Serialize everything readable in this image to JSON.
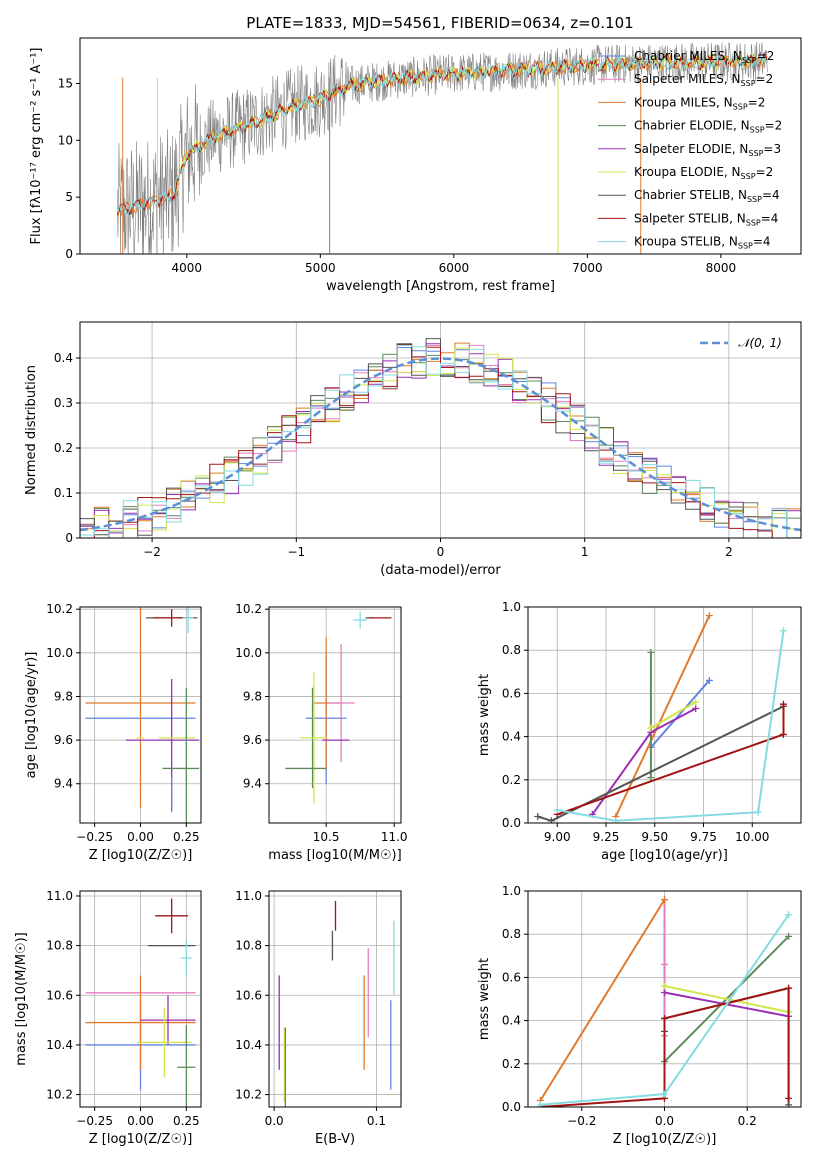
{
  "figure": {
    "title": "PLATE=1833, MJD=54561, FIBERID=0634, z=0.101"
  },
  "colors": {
    "chabrier_miles": "#5f84e0",
    "salpeter_miles": "#e87dc4",
    "kroupa_miles": "#e07b2e",
    "chabrier_elodie": "#5b8c5a",
    "salpeter_elodie": "#9a2fb5",
    "kroupa_elodie": "#d2e64b",
    "chabrier_stelib": "#555555",
    "salpeter_stelib": "#a31515",
    "kroupa_stelib": "#84dbe0",
    "data": "#808080",
    "gauss": "#5b8fd6"
  },
  "chart_data": [
    {
      "type": "line",
      "xlabel": "wavelength [Angstrom, rest frame]",
      "ylabel": "Flux [fλ10⁻¹⁷ erg cm⁻² s⁻¹ A⁻¹]",
      "xlim": [
        3200,
        8600
      ],
      "ylim": [
        0,
        19
      ],
      "xticks": [
        4000,
        5000,
        6000,
        7000,
        8000
      ],
      "yticks": [
        0,
        5,
        10,
        15
      ],
      "grid": false,
      "legend_position": "top-right",
      "continuum_points": [
        [
          3500,
          3.8
        ],
        [
          3700,
          4.5
        ],
        [
          3900,
          5.2
        ],
        [
          4000,
          8.8
        ],
        [
          4200,
          10.3
        ],
        [
          4500,
          11.5
        ],
        [
          4800,
          13.0
        ],
        [
          5000,
          13.7
        ],
        [
          5200,
          14.8
        ],
        [
          5500,
          15.3
        ],
        [
          5900,
          15.8
        ],
        [
          6200,
          16.0
        ],
        [
          6600,
          16.3
        ],
        [
          7000,
          16.6
        ],
        [
          7500,
          16.8
        ],
        [
          8000,
          16.9
        ],
        [
          8300,
          17.0
        ]
      ],
      "series": [
        {
          "name": "Chabrier MILES, N_SSP=2",
          "color_key": "chabrier_miles"
        },
        {
          "name": "Salpeter MILES, N_SSP=2",
          "color_key": "salpeter_miles"
        },
        {
          "name": "Kroupa MILES, N_SSP=2",
          "color_key": "kroupa_miles"
        },
        {
          "name": "Chabrier ELODIE, N_SSP=2",
          "color_key": "chabrier_elodie"
        },
        {
          "name": "Salpeter ELODIE, N_SSP=3",
          "color_key": "salpeter_elodie"
        },
        {
          "name": "Kroupa ELODIE, N_SSP=2",
          "color_key": "kroupa_elodie"
        },
        {
          "name": "Chabrier STELIB, N_SSP=4",
          "color_key": "chabrier_stelib"
        },
        {
          "name": "Salpeter STELIB, N_SSP=4",
          "color_key": "salpeter_stelib"
        },
        {
          "name": "Kroupa STELIB, N_SSP=4",
          "color_key": "kroupa_stelib"
        }
      ]
    },
    {
      "type": "line",
      "xlabel": "(data-model)/error",
      "ylabel": "Normed distribution",
      "xlim": [
        -2.5,
        2.5
      ],
      "ylim": [
        0,
        0.48
      ],
      "xticks": [
        -2,
        -1,
        0,
        1,
        2
      ],
      "yticks": [
        0.0,
        0.1,
        0.2,
        0.3,
        0.4
      ],
      "grid": true,
      "legend_position": "top-right",
      "gaussian_label": "𝒩(0, 1)",
      "bin_width": 0.1
    },
    {
      "type": "scatter",
      "xlabel": "Z [log10(Z/Z☉)]",
      "ylabel": "age [log10(age/yr)]",
      "xlim": [
        -0.33,
        0.33
      ],
      "ylim": [
        9.22,
        10.21
      ],
      "xticks": [
        "-0.25",
        "0.00",
        "0.25"
      ],
      "yticks": [
        "9.4",
        "9.6",
        "9.8",
        "10.0",
        "10.2"
      ],
      "grid": true,
      "points": [
        {
          "key": "chabrier_miles",
          "x": 0.0,
          "xerr": 0.3,
          "y": 9.7,
          "yerr": 0.0
        },
        {
          "key": "kroupa_miles",
          "x": 0.0,
          "xerr": 0.3,
          "y": 9.77,
          "yerr": 0.48
        },
        {
          "key": "salpeter_elodie",
          "x": 0.17,
          "xerr": 0.0,
          "y": 9.58,
          "yerr": 0.3
        },
        {
          "key": "salpeter_elodie",
          "x": 0.12,
          "xerr": 0.2,
          "y": 9.6,
          "yerr": 0.0
        },
        {
          "key": "kroupa_elodie",
          "x": 0.0,
          "xerr": 0.0,
          "y": 9.61,
          "yerr": 0.0
        },
        {
          "key": "kroupa_elodie",
          "x": 0.2,
          "xerr": 0.1,
          "y": 9.61,
          "yerr": 0.0
        },
        {
          "key": "chabrier_elodie",
          "x": 0.25,
          "xerr": 0.0,
          "y": 9.48,
          "yerr": 0.36
        },
        {
          "key": "chabrier_stelib",
          "x": 0.17,
          "xerr": 0.14,
          "y": 10.16,
          "yerr": 0.0
        },
        {
          "key": "salpeter_stelib",
          "x": 0.17,
          "xerr": 0.1,
          "y": 10.16,
          "yerr": 0.04
        },
        {
          "key": "kroupa_stelib",
          "x": 0.26,
          "xerr": 0.03,
          "y": 10.16,
          "yerr": 0.07
        },
        {
          "key": "chabrier_elodie",
          "x": 0.22,
          "xerr": 0.1,
          "y": 9.47,
          "yerr": 0.0
        },
        {
          "key": "chabrier_miles",
          "x": 0.17,
          "xerr": 0.0,
          "y": 9.35,
          "yerr": 0.08
        }
      ]
    },
    {
      "type": "scatter",
      "xlabel": "mass [log10(M/M☉)]",
      "ylabel": "",
      "xlim": [
        10.08,
        11.05
      ],
      "ylim": [
        9.22,
        10.21
      ],
      "xticks": [
        "10.5",
        "11.0"
      ],
      "yticks": [
        "9.4",
        "9.6",
        "9.8",
        "10.0",
        "10.2"
      ],
      "grid": true,
      "points": [
        {
          "key": "chabrier_miles",
          "x": 10.5,
          "xerr": 0.15,
          "y": 9.7,
          "yerr": 0.3
        },
        {
          "key": "kroupa_miles",
          "x": 10.5,
          "xerr": 0.1,
          "y": 9.77,
          "yerr": 0.3
        },
        {
          "key": "salpeter_miles",
          "x": 10.61,
          "xerr": 0.1,
          "y": 9.77,
          "yerr": 0.27
        },
        {
          "key": "chabrier_elodie",
          "x": 10.4,
          "xerr": 0.0,
          "y": 9.61,
          "yerr": 0.23
        },
        {
          "key": "salpeter_elodie",
          "x": 10.57,
          "xerr": 0.1,
          "y": 9.6,
          "yerr": 0.0
        },
        {
          "key": "kroupa_elodie",
          "x": 10.41,
          "xerr": 0.1,
          "y": 9.61,
          "yerr": 0.3
        },
        {
          "key": "chabrier_elodie",
          "x": 10.35,
          "xerr": 0.15,
          "y": 9.47,
          "yerr": 0.0
        },
        {
          "key": "chabrier_stelib",
          "x": 10.82,
          "xerr": 0.03,
          "y": 10.16,
          "yerr": 0.0
        },
        {
          "key": "salpeter_stelib",
          "x": 10.9,
          "xerr": 0.08,
          "y": 10.16,
          "yerr": 0.0
        },
        {
          "key": "kroupa_stelib",
          "x": 10.75,
          "xerr": 0.05,
          "y": 10.15,
          "yerr": 0.04
        }
      ]
    },
    {
      "type": "line",
      "xlabel": "age [log10(age/yr)]",
      "ylabel": "mass weight",
      "xlim": [
        8.85,
        10.25
      ],
      "ylim": [
        0,
        1.0
      ],
      "xticks": [
        "9.00",
        "9.25",
        "9.50",
        "9.75",
        "10.00"
      ],
      "yticks": [
        "0.0",
        "0.2",
        "0.4",
        "0.6",
        "0.8",
        "1.0"
      ],
      "grid": true,
      "series": [
        {
          "key": "chabrier_miles",
          "points": [
            [
              9.48,
              0.35
            ],
            [
              9.78,
              0.66
            ]
          ]
        },
        {
          "key": "kroupa_miles",
          "points": [
            [
              9.3,
              0.03
            ],
            [
              9.78,
              0.96
            ]
          ]
        },
        {
          "key": "chabrier_elodie",
          "points": [
            [
              9.48,
              0.21
            ],
            [
              9.48,
              0.79
            ]
          ]
        },
        {
          "key": "salpeter_elodie",
          "points": [
            [
              9.18,
              0.04
            ],
            [
              9.48,
              0.42
            ],
            [
              9.71,
              0.53
            ]
          ]
        },
        {
          "key": "kroupa_elodie",
          "points": [
            [
              9.48,
              0.44
            ],
            [
              9.71,
              0.56
            ]
          ]
        },
        {
          "key": "chabrier_stelib",
          "points": [
            [
              8.9,
              0.03
            ],
            [
              8.97,
              0.01
            ],
            [
              10.16,
              0.54
            ]
          ]
        },
        {
          "key": "salpeter_stelib",
          "points": [
            [
              9.0,
              0.04
            ],
            [
              10.16,
              0.41
            ],
            [
              10.16,
              0.55
            ]
          ]
        },
        {
          "key": "kroupa_stelib",
          "points": [
            [
              9.0,
              0.06
            ],
            [
              9.3,
              0.01
            ],
            [
              10.03,
              0.05
            ],
            [
              10.16,
              0.89
            ]
          ]
        }
      ]
    },
    {
      "type": "scatter",
      "xlabel": "Z [log10(Z/Z☉)]",
      "ylabel": "mass [log10(M/M☉)]",
      "xlim": [
        -0.33,
        0.33
      ],
      "ylim": [
        10.15,
        11.02
      ],
      "xticks": [
        "-0.25",
        "0.00",
        "0.25"
      ],
      "yticks": [
        "10.2",
        "10.4",
        "10.6",
        "10.8",
        "11.0"
      ],
      "grid": true,
      "points": [
        {
          "key": "chabrier_miles",
          "x": 0.0,
          "xerr": 0.3,
          "y": 10.4,
          "yerr": 0.18
        },
        {
          "key": "salpeter_miles",
          "x": 0.0,
          "xerr": 0.3,
          "y": 10.61,
          "yerr": 0.0
        },
        {
          "key": "kroupa_miles",
          "x": 0.0,
          "xerr": 0.3,
          "y": 10.49,
          "yerr": 0.19
        },
        {
          "key": "salpeter_elodie",
          "x": 0.15,
          "xerr": 0.15,
          "y": 10.5,
          "yerr": 0.1
        },
        {
          "key": "kroupa_elodie",
          "x": 0.13,
          "xerr": 0.15,
          "y": 10.41,
          "yerr": 0.14
        },
        {
          "key": "chabrier_elodie",
          "x": 0.25,
          "xerr": 0.05,
          "y": 10.31,
          "yerr": 0.17
        },
        {
          "key": "chabrier_stelib",
          "x": 0.17,
          "xerr": 0.13,
          "y": 10.8,
          "yerr": 0.0
        },
        {
          "key": "salpeter_stelib",
          "x": 0.17,
          "xerr": 0.09,
          "y": 10.92,
          "yerr": 0.07
        },
        {
          "key": "kroupa_stelib",
          "x": 0.25,
          "xerr": 0.03,
          "y": 10.75,
          "yerr": 0.07
        }
      ]
    },
    {
      "type": "scatter",
      "xlabel": "E(B-V)",
      "ylabel": "",
      "xlim": [
        -0.005,
        0.124
      ],
      "ylim": [
        10.15,
        11.02
      ],
      "xticks": [
        "0.0",
        "0.1"
      ],
      "yticks": [
        "10.2",
        "10.4",
        "10.6",
        "10.8",
        "11.0"
      ],
      "grid": true,
      "points": [
        {
          "key": "salpeter_elodie",
          "x": 0.005,
          "y": 10.49,
          "yerr": 0.19
        },
        {
          "key": "kroupa_elodie",
          "x": 0.01,
          "y": 10.32,
          "yerr": 0.15
        },
        {
          "key": "chabrier_elodie",
          "x": 0.011,
          "y": 10.31,
          "yerr": 0.16
        },
        {
          "key": "chabrier_stelib",
          "x": 0.057,
          "y": 10.8,
          "yerr": 0.06
        },
        {
          "key": "salpeter_stelib",
          "x": 0.06,
          "y": 10.92,
          "yerr": 0.06
        },
        {
          "key": "kroupa_miles",
          "x": 0.088,
          "y": 10.49,
          "yerr": 0.19
        },
        {
          "key": "salpeter_miles",
          "x": 0.092,
          "y": 10.61,
          "yerr": 0.18
        },
        {
          "key": "chabrier_miles",
          "x": 0.114,
          "y": 10.4,
          "yerr": 0.18
        },
        {
          "key": "kroupa_stelib",
          "x": 0.117,
          "y": 10.75,
          "yerr": 0.15
        }
      ]
    },
    {
      "type": "line",
      "xlabel": "Z [log10(Z/Z☉)]",
      "ylabel": "mass weight",
      "xlim": [
        -0.33,
        0.33
      ],
      "ylim": [
        0,
        1.0
      ],
      "xticks": [
        "-0.2",
        "0.0",
        "0.2"
      ],
      "yticks": [
        "0.0",
        "0.2",
        "0.4",
        "0.6",
        "0.8",
        "1.0"
      ],
      "grid": true,
      "series": [
        {
          "key": "salpeter_miles",
          "points": [
            [
              0.0,
              0.33
            ],
            [
              0.0,
              0.66
            ],
            [
              0.0,
              0.96
            ]
          ]
        },
        {
          "key": "kroupa_miles",
          "points": [
            [
              -0.3,
              0.03
            ],
            [
              0.0,
              0.96
            ]
          ]
        },
        {
          "key": "chabrier_elodie",
          "points": [
            [
              0.0,
              0.21
            ],
            [
              0.3,
              0.79
            ]
          ]
        },
        {
          "key": "salpeter_elodie",
          "points": [
            [
              0.0,
              0.53
            ],
            [
              0.3,
              0.42
            ]
          ]
        },
        {
          "key": "kroupa_elodie",
          "points": [
            [
              0.0,
              0.56
            ],
            [
              0.3,
              0.44
            ]
          ]
        },
        {
          "key": "chabrier_stelib",
          "points": [
            [
              0.0,
              0.35
            ],
            [
              0.0,
              0.41
            ],
            [
              0.3,
              0.55
            ],
            [
              0.3,
              0.01
            ]
          ]
        },
        {
          "key": "salpeter_stelib",
          "points": [
            [
              -0.3,
              0.0
            ],
            [
              0.0,
              0.04
            ],
            [
              0.0,
              0.41
            ],
            [
              0.3,
              0.55
            ],
            [
              0.3,
              0.04
            ]
          ]
        },
        {
          "key": "kroupa_stelib",
          "points": [
            [
              -0.3,
              0.01
            ],
            [
              0.0,
              0.06
            ],
            [
              0.3,
              0.89
            ]
          ]
        }
      ]
    }
  ]
}
